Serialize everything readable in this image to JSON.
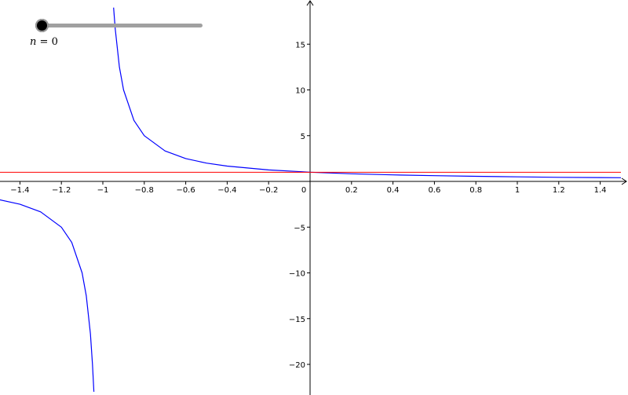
{
  "slider": {
    "variable": "n",
    "equals": "=",
    "value": "0",
    "track_color": "#a0a0a0",
    "handle_color": "#000000"
  },
  "chart_data": {
    "type": "line",
    "xlim": [
      -1.5,
      1.5
    ],
    "ylim": [
      -23,
      19
    ],
    "x_ticks": [
      -1.4,
      -1.2,
      -1,
      -0.8,
      -0.6,
      -0.4,
      -0.2,
      0.2,
      0.4,
      0.6,
      0.8,
      1,
      1.2,
      1.4
    ],
    "x_tick_labels": [
      "−1.4",
      "−1.2",
      "−1",
      "−0.8",
      "−0.6",
      "−0.4",
      "−0.2",
      "0.2",
      "0.4",
      "0.6",
      "0.8",
      "1",
      "1.2",
      "1.4"
    ],
    "y_ticks": [
      15,
      10,
      5,
      -5,
      -10,
      -15,
      -20
    ],
    "y_tick_labels": [
      "15",
      "10",
      "5",
      "−5",
      "−10",
      "−15",
      "−20"
    ],
    "origin_label": "0",
    "grid": false,
    "series": [
      {
        "color": "#0000ff",
        "style": "curve",
        "asymptote_x": -1,
        "points": [
          [
            -1.5,
            -2.0
          ],
          [
            -1.4,
            -2.5
          ],
          [
            -1.3,
            -3.33
          ],
          [
            -1.2,
            -5.0
          ],
          [
            -1.15,
            -6.67
          ],
          [
            -1.1,
            -10.0
          ],
          [
            -1.08,
            -12.5
          ],
          [
            -1.06,
            -16.67
          ],
          [
            -1.05,
            -20.0
          ],
          [
            -1.043,
            -23.0
          ],
          [
            -0.948,
            19.0
          ],
          [
            -0.94,
            16.67
          ],
          [
            -0.92,
            12.5
          ],
          [
            -0.9,
            10.0
          ],
          [
            -0.85,
            6.67
          ],
          [
            -0.8,
            5.0
          ],
          [
            -0.7,
            3.33
          ],
          [
            -0.6,
            2.5
          ],
          [
            -0.5,
            2.0
          ],
          [
            -0.4,
            1.67
          ],
          [
            -0.2,
            1.25
          ],
          [
            0,
            1.0
          ],
          [
            0.2,
            0.83
          ],
          [
            0.4,
            0.71
          ],
          [
            0.6,
            0.63
          ],
          [
            0.8,
            0.56
          ],
          [
            1.0,
            0.5
          ],
          [
            1.2,
            0.45
          ],
          [
            1.5,
            0.4
          ]
        ]
      },
      {
        "color": "#ff0000",
        "style": "horizontal-line",
        "y": 1,
        "x": [
          -1.5,
          1.5
        ]
      }
    ]
  }
}
